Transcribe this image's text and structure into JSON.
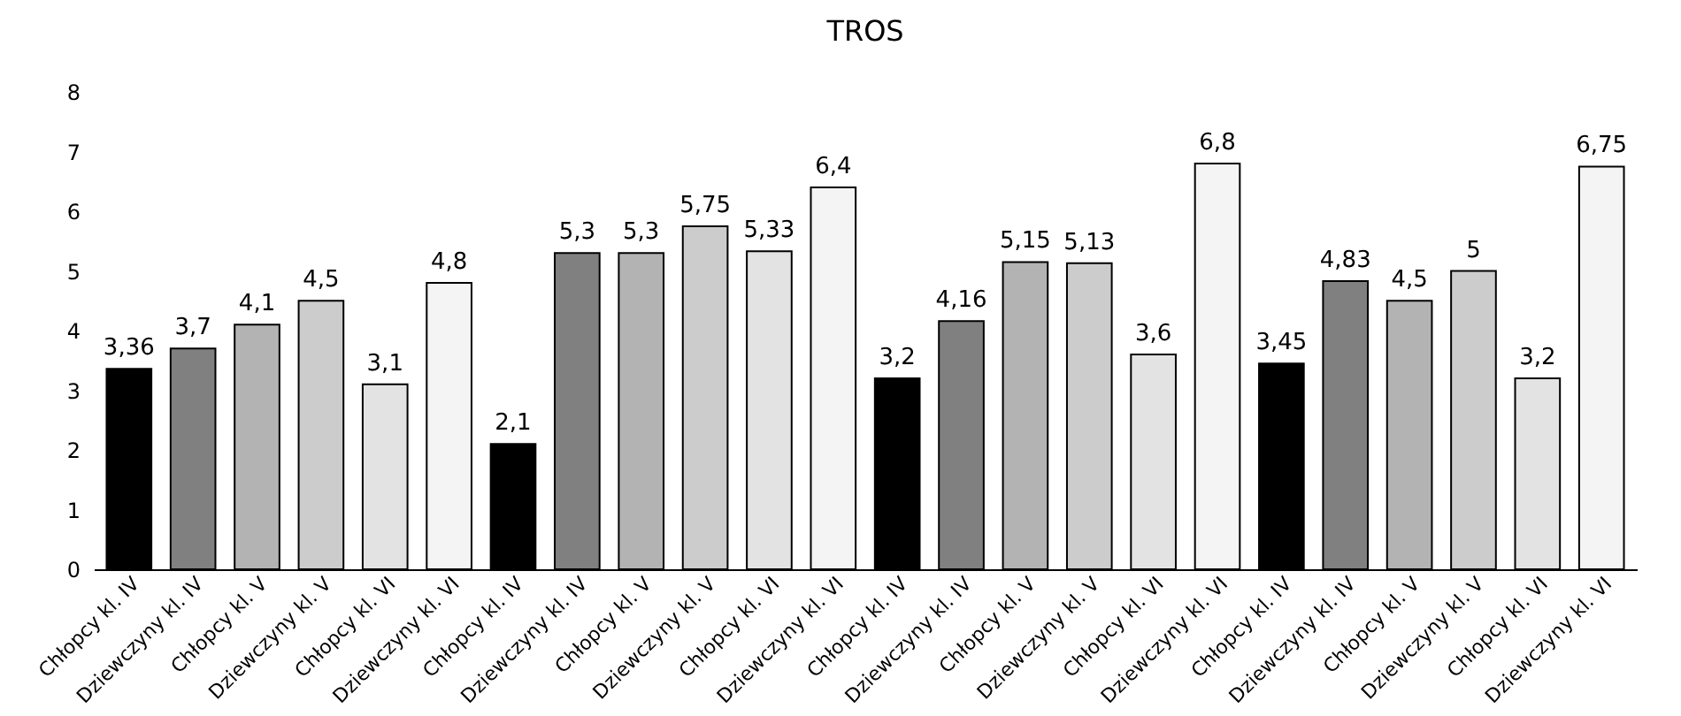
{
  "chart_data": {
    "type": "bar",
    "title": "TROS",
    "categories": [
      "Chłopcy kl. IV",
      "Dziewczyny kl. IV",
      "Chłopcy kl. V",
      "Dziewczyny kl. V",
      "Chłopcy kl. VI",
      "Dziewczyny kl. VI",
      "Chłopcy kl. IV",
      "Dziewczyny kl. IV",
      "Chłopcy kl. V",
      "Dziewczyny kl. V",
      "Chłopcy kl. VI",
      "Dziewczyny kl. VI",
      "Chłopcy kl. IV",
      "Dziewczyny kl. IV",
      "Chłopcy kl. V",
      "Dziewczyny kl. V",
      "Chłopcy kl. VI",
      "Dziewczyny kl. VI",
      "Chłopcy kl. IV",
      "Dziewczyny kl. IV",
      "Chłopcy kl. V",
      "Dziewczyny kl. V",
      "Chłopcy kl. VI",
      "Dziewczyny kl. VI"
    ],
    "values": [
      3.36,
      3.7,
      4.1,
      4.5,
      3.1,
      4.8,
      2.1,
      5.3,
      5.3,
      5.75,
      5.33,
      6.4,
      3.2,
      4.16,
      5.15,
      5.13,
      3.6,
      6.8,
      3.45,
      4.83,
      4.5,
      5,
      3.2,
      6.75
    ],
    "value_labels": [
      "3,36",
      "3,7",
      "4,1",
      "4,5",
      "3,1",
      "4,8",
      "2,1",
      "5,3",
      "5,3",
      "5,75",
      "5,33",
      "6,4",
      "3,2",
      "4,16",
      "5,15",
      "5,13",
      "3,6",
      "6,8",
      "3,45",
      "4,83",
      "4,5",
      "5",
      "3,2",
      "6,75"
    ],
    "colors": [
      "#000000",
      "#808080",
      "#b3b3b3",
      "#cccccc",
      "#e3e3e3",
      "#f4f4f4",
      "#000000",
      "#808080",
      "#b3b3b3",
      "#cccccc",
      "#e3e3e3",
      "#f4f4f4",
      "#000000",
      "#808080",
      "#b3b3b3",
      "#cccccc",
      "#e3e3e3",
      "#f4f4f4",
      "#000000",
      "#808080",
      "#b3b3b3",
      "#cccccc",
      "#e3e3e3",
      "#f4f4f4"
    ],
    "ylim": [
      0,
      8
    ],
    "yticks": [
      0,
      1,
      2,
      3,
      4,
      5,
      6,
      7,
      8
    ],
    "grid": false
  }
}
